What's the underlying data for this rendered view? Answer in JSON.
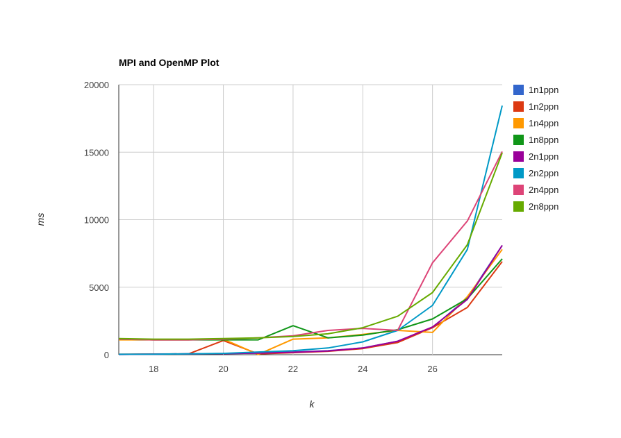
{
  "chart_data": {
    "type": "line",
    "title": "MPI and OpenMP Plot",
    "xlabel": "k",
    "ylabel": "ms",
    "xlim": [
      17,
      28
    ],
    "ylim": [
      0,
      20000
    ],
    "x_ticks": [
      18,
      20,
      22,
      24,
      26
    ],
    "y_ticks": [
      0,
      5000,
      10000,
      15000,
      20000
    ],
    "grid": true,
    "legend_position": "right",
    "x": [
      17,
      18,
      19,
      20,
      21,
      22,
      23,
      24,
      25,
      26,
      27,
      28
    ],
    "series": [
      {
        "name": "1n1ppn",
        "color": "#3366cc",
        "values": [
          20,
          40,
          60,
          80,
          120,
          200,
          300,
          500,
          1000,
          2000,
          4200,
          8100
        ]
      },
      {
        "name": "1n2ppn",
        "color": "#dc3912",
        "values": [
          30,
          50,
          60,
          1050,
          60,
          150,
          250,
          450,
          900,
          2000,
          3500,
          6900
        ]
      },
      {
        "name": "1n4ppn",
        "color": "#ff9900",
        "values": [
          1100,
          1100,
          1100,
          1150,
          20,
          1150,
          1250,
          1500,
          1800,
          1650,
          4300,
          7800
        ]
      },
      {
        "name": "1n8ppn",
        "color": "#109618",
        "values": [
          1150,
          1100,
          1100,
          1100,
          1100,
          2150,
          1250,
          1450,
          1850,
          2650,
          4150,
          7100
        ]
      },
      {
        "name": "2n1ppn",
        "color": "#990099",
        "values": [
          20,
          40,
          60,
          80,
          120,
          180,
          280,
          500,
          1000,
          2050,
          4100,
          8100
        ]
      },
      {
        "name": "2n2ppn",
        "color": "#0099c6",
        "values": [
          30,
          40,
          60,
          100,
          200,
          300,
          500,
          950,
          1800,
          3650,
          7800,
          18450
        ]
      },
      {
        "name": "2n4ppn",
        "color": "#dd4477",
        "values": [
          1150,
          1100,
          1100,
          1150,
          1250,
          1400,
          1800,
          1950,
          1800,
          6800,
          9900,
          15050
        ]
      },
      {
        "name": "2n8ppn",
        "color": "#66aa00",
        "values": [
          1200,
          1150,
          1150,
          1200,
          1250,
          1350,
          1550,
          2000,
          2850,
          4600,
          8150,
          14950
        ]
      }
    ]
  }
}
